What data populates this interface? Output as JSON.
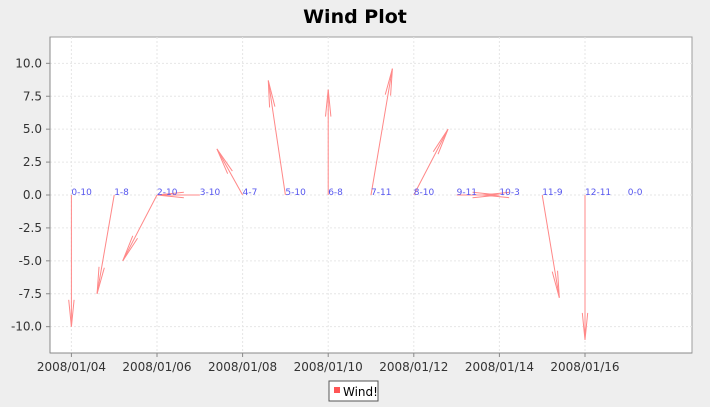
{
  "chart_data": {
    "type": "vector",
    "title": "Wind Plot",
    "xlabel": "",
    "ylabel": "",
    "xlim": [
      "2008-01-03T12:00",
      "2008-01-18T12:00"
    ],
    "ylim": [
      -12,
      12
    ],
    "x_ticks": [
      "2008/01/04",
      "2008/01/06",
      "2008/01/08",
      "2008/01/10",
      "2008/01/12",
      "2008/01/14",
      "2008/01/16"
    ],
    "y_ticks": [
      "10.0",
      "7.5",
      "5.0",
      "2.5",
      "0.0",
      "-2.5",
      "-5.0",
      "-7.5",
      "-10.0"
    ],
    "grid": true,
    "legend": {
      "position": "bottom",
      "entries": [
        {
          "name": "Wind!",
          "color": "#ff5555"
        }
      ]
    },
    "colors": {
      "arrow": "#ff8888",
      "label": "#5555ee",
      "plot_bg": "#ffffff",
      "grid": "#e6e6e6"
    },
    "series": [
      {
        "name": "Wind!",
        "points": [
          {
            "x": "2008-01-04T00:00",
            "y": 0,
            "label": "0-10",
            "dx": "0 days",
            "dy": -10
          },
          {
            "x": "2008-01-05T00:00",
            "y": 0,
            "label": "1-8",
            "dx": "-0.4 days",
            "dy": -7.5
          },
          {
            "x": "2008-01-06T00:00",
            "y": 0,
            "label": "2-10",
            "dx": "-0.8 days",
            "dy": -5
          },
          {
            "x": "2008-01-07T00:00",
            "y": 0,
            "label": "3-10",
            "dx": "-1 days",
            "dy": 0
          },
          {
            "x": "2008-01-08T00:00",
            "y": 0,
            "label": "4-7",
            "dx": "-0.6 days",
            "dy": 3.5
          },
          {
            "x": "2008-01-09T00:00",
            "y": 0,
            "label": "5-10",
            "dx": "-0.4 days",
            "dy": 8.7
          },
          {
            "x": "2008-01-10T00:00",
            "y": 0,
            "label": "6-8",
            "dx": "0 days",
            "dy": 8
          },
          {
            "x": "2008-01-11T00:00",
            "y": 0,
            "label": "7-11",
            "dx": "0.5 days",
            "dy": 9.6
          },
          {
            "x": "2008-01-12T00:00",
            "y": 0,
            "label": "8-10",
            "dx": "0.8 days",
            "dy": 5
          },
          {
            "x": "2008-01-13T00:00",
            "y": 0,
            "label": "9-11",
            "dx": "1 days",
            "dy": 0
          },
          {
            "x": "2008-01-14T00:00",
            "y": 0,
            "label": "10-3",
            "dx": "-0.4 days",
            "dy": 0
          },
          {
            "x": "2008-01-15T00:00",
            "y": 0,
            "label": "11-9",
            "dx": "0.4 days",
            "dy": -7.8
          },
          {
            "x": "2008-01-16T00:00",
            "y": 0,
            "label": "12-11",
            "dx": "0 days",
            "dy": -11
          },
          {
            "x": "2008-01-17T00:00",
            "y": 0,
            "label": "0-0",
            "dx": "0 days",
            "dy": 0
          }
        ]
      }
    ]
  }
}
